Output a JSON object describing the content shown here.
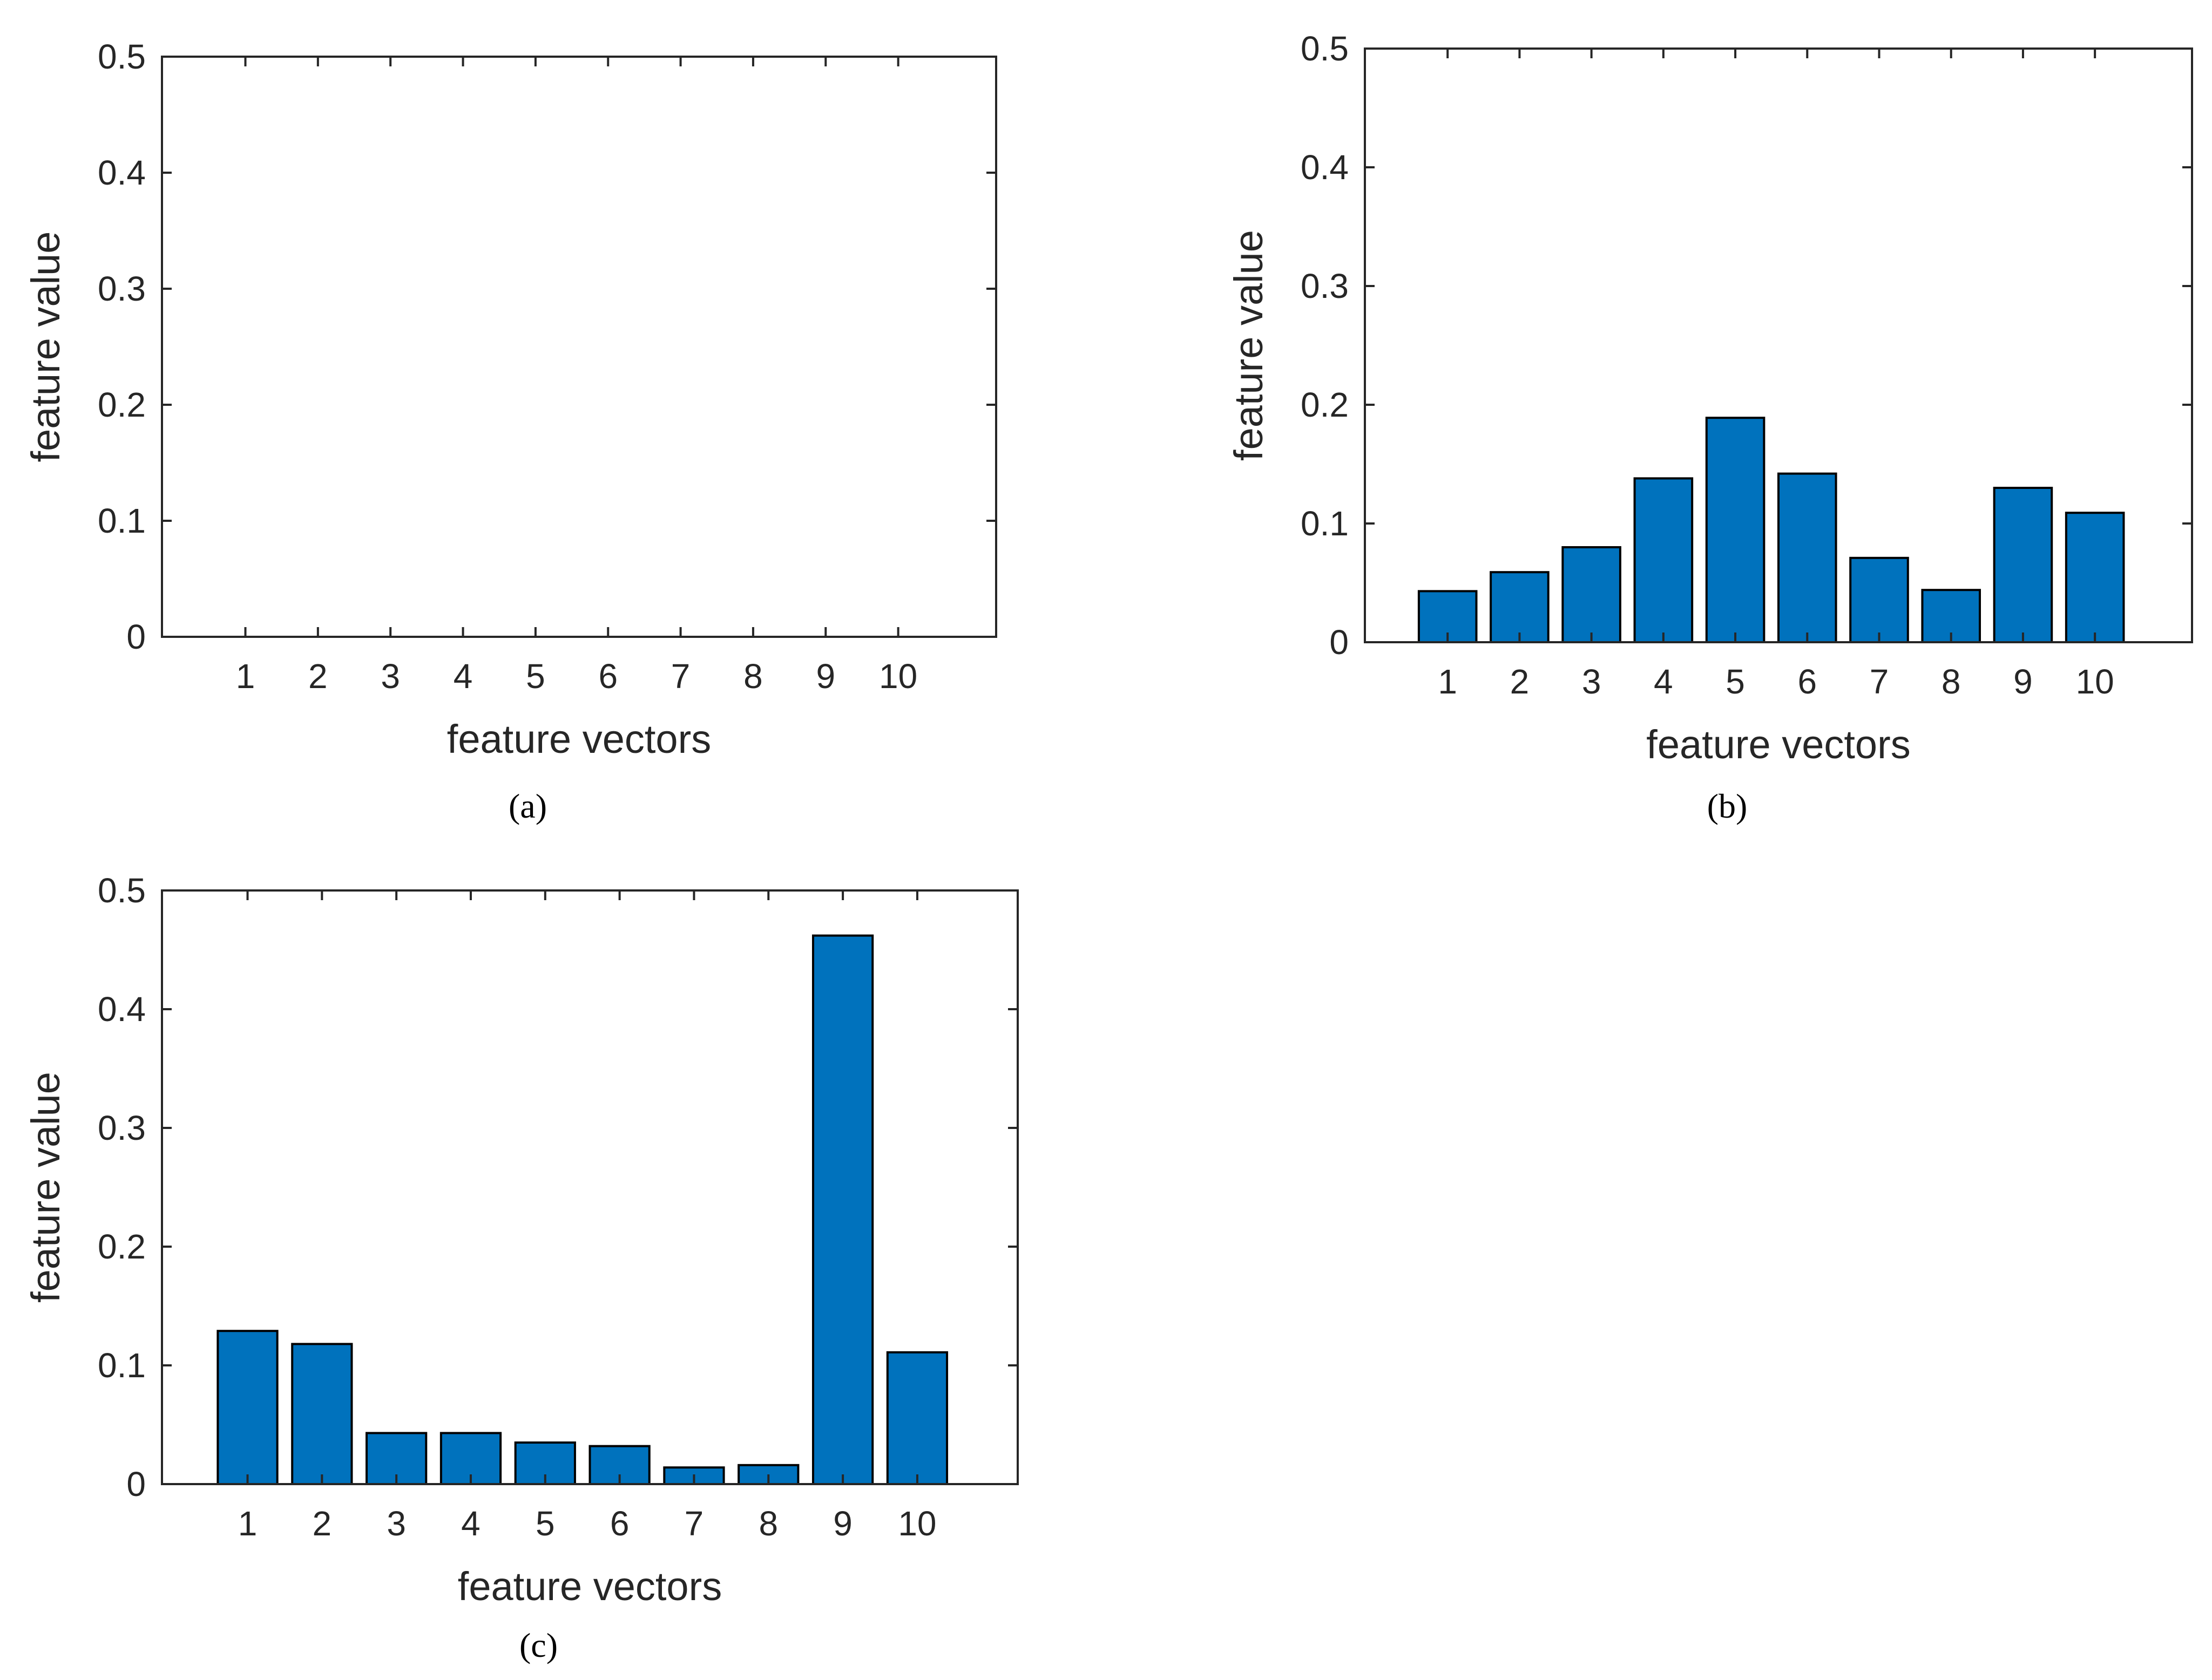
{
  "colors": {
    "bar_fill": "#0072BD",
    "bar_edge": "#000000",
    "axis": "#262626"
  },
  "chart_data": [
    {
      "id": "a",
      "type": "bar",
      "caption": "(a)",
      "xlabel": "feature vectors",
      "ylabel": "feature value",
      "categories": [
        "1",
        "2",
        "3",
        "4",
        "5",
        "6",
        "7",
        "8",
        "9",
        "10"
      ],
      "values": [
        0,
        0,
        0,
        0,
        0,
        0,
        0,
        0,
        0,
        0
      ],
      "ylim": [
        0,
        0.5
      ],
      "yticks": [
        "0",
        "0.1",
        "0.2",
        "0.3",
        "0.4",
        "0.5"
      ],
      "grid": false
    },
    {
      "id": "b",
      "type": "bar",
      "caption": "(b)",
      "xlabel": "feature vectors",
      "ylabel": "feature value",
      "categories": [
        "1",
        "2",
        "3",
        "4",
        "5",
        "6",
        "7",
        "8",
        "9",
        "10"
      ],
      "values": [
        0.043,
        0.059,
        0.08,
        0.138,
        0.189,
        0.142,
        0.071,
        0.044,
        0.13,
        0.109
      ],
      "ylim": [
        0,
        0.5
      ],
      "yticks": [
        "0",
        "0.1",
        "0.2",
        "0.3",
        "0.4",
        "0.5"
      ],
      "grid": false
    },
    {
      "id": "c",
      "type": "bar",
      "caption": "(c)",
      "xlabel": "feature vectors",
      "ylabel": "feature value",
      "categories": [
        "1",
        "2",
        "3",
        "4",
        "5",
        "6",
        "7",
        "8",
        "9",
        "10"
      ],
      "values": [
        0.129,
        0.118,
        0.043,
        0.043,
        0.035,
        0.032,
        0.014,
        0.016,
        0.462,
        0.111
      ],
      "ylim": [
        0,
        0.5
      ],
      "yticks": [
        "0",
        "0.1",
        "0.2",
        "0.3",
        "0.4",
        "0.5"
      ],
      "grid": false
    }
  ]
}
